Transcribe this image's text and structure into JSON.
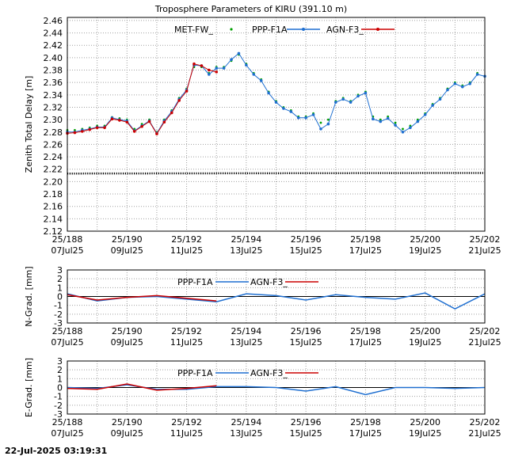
{
  "chart_data": [
    {
      "type": "scatter",
      "title": "Troposphere Parameters of KIRU (391.10 m)",
      "ylabel": "Zenith Total Delay [m]",
      "xlim": [
        188,
        202
      ],
      "ylim": [
        2.12,
        2.465
      ],
      "yticks": [
        "2.12",
        "2.14",
        "2.16",
        "2.18",
        "2.20",
        "2.22",
        "2.24",
        "2.26",
        "2.28",
        "2.30",
        "2.32",
        "2.34",
        "2.36",
        "2.38",
        "2.40",
        "2.42",
        "2.44",
        "2.46"
      ],
      "xticks": [
        {
          "doy": "25/188",
          "date": "07Jul25"
        },
        {
          "doy": "25/190",
          "date": "09Jul25"
        },
        {
          "doy": "25/192",
          "date": "11Jul25"
        },
        {
          "doy": "25/194",
          "date": "13Jul25"
        },
        {
          "doy": "25/196",
          "date": "15Jul25"
        },
        {
          "doy": "25/198",
          "date": "17Jul25"
        },
        {
          "doy": "25/200",
          "date": "19Jul25"
        },
        {
          "doy": "25/202",
          "date": "21Jul25"
        }
      ],
      "grid": true,
      "legend_position": "top",
      "series": [
        {
          "name": "MET-FW_",
          "style": "points",
          "color": "#00a000",
          "x": [
            188.0,
            188.25,
            188.5,
            188.75,
            189.0,
            189.25,
            189.5,
            189.75,
            190.0,
            190.25,
            190.5,
            190.75,
            191.0,
            191.25,
            191.5,
            191.75,
            192.0,
            192.25,
            192.5,
            192.75,
            193.0,
            193.25,
            193.5,
            193.75,
            194.0,
            194.25,
            194.5,
            194.75,
            195.0,
            195.25,
            195.5,
            195.75,
            196.0,
            196.25,
            196.5,
            196.75,
            197.0,
            197.25,
            197.5,
            197.75,
            198.0,
            198.25,
            198.5,
            198.75,
            199.0,
            199.25,
            199.5,
            199.75,
            200.0,
            200.25,
            200.5,
            200.75,
            201.0,
            201.25,
            201.5,
            201.75,
            202.0
          ],
          "y": [
            2.283,
            2.283,
            2.285,
            2.287,
            2.29,
            2.29,
            2.304,
            2.302,
            2.3,
            2.285,
            2.293,
            2.3,
            2.28,
            2.3,
            2.315,
            2.335,
            2.35,
            2.385,
            2.385,
            2.375,
            2.385,
            2.385,
            2.395,
            2.405,
            2.39,
            2.375,
            2.365,
            2.345,
            2.33,
            2.32,
            2.315,
            2.305,
            2.305,
            2.31,
            2.295,
            2.3,
            2.33,
            2.335,
            2.33,
            2.34,
            2.345,
            2.305,
            2.3,
            2.305,
            2.295,
            2.285,
            2.29,
            2.3,
            2.31,
            2.325,
            2.335,
            2.35,
            2.36,
            2.355,
            2.36,
            2.375,
            2.37
          ]
        },
        {
          "name": "PPP-F1A",
          "style": "linespoints",
          "color": "#1f6fd0",
          "x": [
            188.0,
            188.25,
            188.5,
            188.75,
            189.0,
            189.25,
            189.5,
            189.75,
            190.0,
            190.25,
            190.5,
            190.75,
            191.0,
            191.25,
            191.5,
            191.75,
            192.0,
            192.25,
            192.5,
            192.75,
            193.0,
            193.25,
            193.5,
            193.75,
            194.0,
            194.25,
            194.5,
            194.75,
            195.0,
            195.25,
            195.5,
            195.75,
            196.0,
            196.25,
            196.5,
            196.75,
            197.0,
            197.25,
            197.5,
            197.75,
            198.0,
            198.25,
            198.5,
            198.75,
            199.0,
            199.25,
            199.5,
            199.75,
            200.0,
            200.25,
            200.5,
            200.75,
            201.0,
            201.25,
            201.5,
            201.75,
            202.0
          ],
          "y": [
            2.28,
            2.28,
            2.283,
            2.285,
            2.288,
            2.288,
            2.303,
            2.3,
            2.298,
            2.282,
            2.29,
            2.298,
            2.278,
            2.298,
            2.313,
            2.333,
            2.348,
            2.388,
            2.387,
            2.373,
            2.383,
            2.383,
            2.397,
            2.407,
            2.388,
            2.373,
            2.363,
            2.343,
            2.328,
            2.318,
            2.313,
            2.303,
            2.303,
            2.308,
            2.285,
            2.293,
            2.328,
            2.333,
            2.328,
            2.338,
            2.343,
            2.301,
            2.297,
            2.302,
            2.291,
            2.28,
            2.287,
            2.297,
            2.308,
            2.323,
            2.333,
            2.348,
            2.358,
            2.353,
            2.358,
            2.373,
            2.37
          ]
        },
        {
          "name": "AGN-F3_",
          "style": "linespoints",
          "color": "#cc0000",
          "x": [
            188.0,
            188.25,
            188.5,
            188.75,
            189.0,
            189.25,
            189.5,
            189.75,
            190.0,
            190.25,
            190.5,
            190.75,
            191.0,
            191.25,
            191.5,
            191.75,
            192.0,
            192.25,
            192.5,
            192.75,
            193.0
          ],
          "y": [
            2.278,
            2.279,
            2.281,
            2.284,
            2.287,
            2.287,
            2.301,
            2.299,
            2.296,
            2.281,
            2.289,
            2.297,
            2.277,
            2.296,
            2.311,
            2.331,
            2.346,
            2.39,
            2.387,
            2.38,
            2.377
          ]
        },
        {
          "name": "",
          "style": "points",
          "color": "#000000",
          "x": [
            188.0,
            202.0
          ],
          "y": [
            2.213,
            2.214
          ]
        }
      ]
    },
    {
      "type": "line",
      "ylabel": "N-Grad. [mm]",
      "xlim": [
        188,
        202
      ],
      "ylim": [
        -3,
        3
      ],
      "yticks": [
        "-3",
        "-2",
        "-1",
        "0",
        "1",
        "2",
        "3"
      ],
      "xticks": [
        {
          "doy": "25/188",
          "date": "07Jul25"
        },
        {
          "doy": "25/190",
          "date": "09Jul25"
        },
        {
          "doy": "25/192",
          "date": "11Jul25"
        },
        {
          "doy": "25/194",
          "date": "13Jul25"
        },
        {
          "doy": "25/196",
          "date": "15Jul25"
        },
        {
          "doy": "25/198",
          "date": "17Jul25"
        },
        {
          "doy": "25/200",
          "date": "19Jul25"
        },
        {
          "doy": "25/202",
          "date": "21Jul25"
        }
      ],
      "grid": true,
      "legend_position": "top",
      "series": [
        {
          "name": "PPP-F1A",
          "color": "#1f6fd0",
          "x": [
            188,
            189,
            190,
            191,
            192,
            193,
            194,
            195,
            196,
            197,
            198,
            199,
            200,
            201,
            202
          ],
          "y": [
            0.3,
            -0.5,
            -0.1,
            0.0,
            -0.3,
            -0.6,
            0.3,
            0.1,
            -0.4,
            0.2,
            -0.1,
            -0.3,
            0.4,
            -1.4,
            0.3
          ]
        },
        {
          "name": "AGN-F3_",
          "color": "#cc0000",
          "x": [
            188,
            189,
            190,
            191,
            192,
            193
          ],
          "y": [
            0.2,
            -0.4,
            -0.1,
            0.1,
            -0.2,
            -0.5
          ]
        }
      ]
    },
    {
      "type": "line",
      "ylabel": "E-Grad. [mm]",
      "xlim": [
        188,
        202
      ],
      "ylim": [
        -3,
        3
      ],
      "yticks": [
        "-3",
        "-2",
        "-1",
        "0",
        "1",
        "2",
        "3"
      ],
      "xticks": [
        {
          "doy": "25/188",
          "date": "07Jul25"
        },
        {
          "doy": "25/190",
          "date": "09Jul25"
        },
        {
          "doy": "25/192",
          "date": "11Jul25"
        },
        {
          "doy": "25/194",
          "date": "13Jul25"
        },
        {
          "doy": "25/196",
          "date": "15Jul25"
        },
        {
          "doy": "25/198",
          "date": "17Jul25"
        },
        {
          "doy": "25/200",
          "date": "19Jul25"
        },
        {
          "doy": "25/202",
          "date": "21Jul25"
        }
      ],
      "grid": true,
      "legend_position": "top",
      "series": [
        {
          "name": "PPP-F1A",
          "color": "#1f6fd0",
          "x": [
            188,
            189,
            190,
            191,
            192,
            193,
            194,
            195,
            196,
            197,
            198,
            199,
            200,
            201,
            202
          ],
          "y": [
            0.0,
            -0.1,
            0.3,
            -0.2,
            -0.2,
            0.1,
            0.1,
            0.0,
            -0.4,
            0.1,
            -0.8,
            0.0,
            0.0,
            -0.1,
            0.0
          ]
        },
        {
          "name": "AGN-F3_",
          "color": "#cc0000",
          "x": [
            188,
            189,
            190,
            191,
            192,
            193
          ],
          "y": [
            -0.1,
            -0.2,
            0.4,
            -0.3,
            -0.1,
            0.2
          ]
        }
      ]
    }
  ],
  "footer": {
    "timestamp": "22-Jul-2025 03:19:31"
  }
}
